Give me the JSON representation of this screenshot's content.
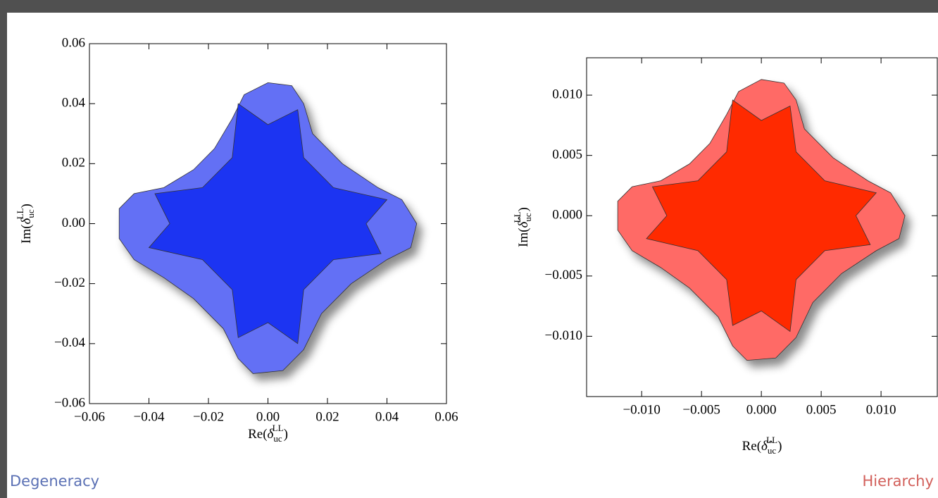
{
  "captions": [
    "Degeneracy",
    "Hierarchy"
  ],
  "chart_data": [
    {
      "type": "region",
      "xlabel": {
        "pre": "Re(",
        "sym": "δ",
        "sub": "uc",
        "sup": "LL",
        "post": ")"
      },
      "ylabel": {
        "pre": "Im(",
        "sym": "δ",
        "sub": "uc",
        "sup": "LL",
        "post": ")"
      },
      "xlim": [
        -0.06,
        0.06
      ],
      "ylim": [
        -0.06,
        0.06
      ],
      "xticks": [
        {
          "value": -0.06,
          "label": "−0.06"
        },
        {
          "value": -0.04,
          "label": "−0.04"
        },
        {
          "value": -0.02,
          "label": "−0.02"
        },
        {
          "value": 0,
          "label": "0.00"
        },
        0.02,
        0.04,
        0.06
      ],
      "yticks": [
        {
          "value": -0.06,
          "label": "−0.06"
        },
        {
          "value": -0.04,
          "label": "−0.04"
        },
        {
          "value": -0.02,
          "label": "−0.02"
        },
        {
          "value": 0,
          "label": "0.00"
        },
        0.02,
        0.04,
        0.06
      ],
      "series": [
        {
          "color": "#6470f5",
          "x": [
            0,
            0.008,
            0.012,
            0.015,
            0.025,
            0.037,
            0.045,
            0.05,
            0.048,
            0.04,
            0.028,
            0.018,
            0.012,
            0.005,
            -0.005,
            -0.01,
            -0.015,
            -0.025,
            -0.035,
            -0.045,
            -0.05,
            -0.05,
            -0.045,
            -0.035,
            -0.025,
            -0.018,
            -0.012,
            -0.008
          ],
          "y": [
            0.047,
            0.046,
            0.04,
            0.03,
            0.02,
            0.012,
            0.008,
            0,
            -0.008,
            -0.012,
            -0.02,
            -0.03,
            -0.042,
            -0.049,
            -0.05,
            -0.045,
            -0.035,
            -0.025,
            -0.018,
            -0.012,
            -0.005,
            0.005,
            0.01,
            0.012,
            0.018,
            0.025,
            0.035,
            0.043
          ]
        },
        {
          "color": "#1c34f2",
          "x": [
            -0.01,
            0,
            0.01,
            0.012,
            0.022,
            0.04,
            0.033,
            0.038,
            0.022,
            0.012,
            0.01,
            0,
            -0.01,
            -0.012,
            -0.022,
            -0.04,
            -0.033,
            -0.038,
            -0.022,
            -0.012
          ],
          "y": [
            0.04,
            0.033,
            0.038,
            0.022,
            0.012,
            0.008,
            0,
            -0.01,
            -0.012,
            -0.022,
            -0.04,
            -0.033,
            -0.038,
            -0.022,
            -0.012,
            -0.008,
            0,
            0.01,
            0.012,
            0.022
          ]
        }
      ]
    },
    {
      "type": "region",
      "xlabel": {
        "pre": "Re(",
        "sym": "δ̂",
        "sub": "uc",
        "sup": "LL",
        "post": ")"
      },
      "ylabel": {
        "pre": "Im(",
        "sym": "δ̂",
        "sub": "uc",
        "sup": "LL",
        "post": ")"
      },
      "xlim": [
        -0.0146,
        0.0147
      ],
      "ylim": [
        -0.015,
        0.0131
      ],
      "xticks": [
        {
          "value": -0.01,
          "label": "−0.010"
        },
        {
          "value": -0.005,
          "label": "−0.005"
        },
        {
          "value": 0,
          "label": "0.000"
        },
        0.005,
        {
          "value": 0.01,
          "label": "0.010"
        }
      ],
      "yticks": [
        {
          "value": -0.01,
          "label": "−0.010"
        },
        {
          "value": -0.005,
          "label": "−0.005"
        },
        {
          "value": 0,
          "label": "0.000"
        },
        0.005,
        {
          "value": 0.01,
          "label": "0.010"
        }
      ],
      "series": [
        {
          "color": "#ff6b66",
          "x": [
            0,
            0.0019,
            0.0029,
            0.0036,
            0.006,
            0.0089,
            0.0108,
            0.012,
            0.0115,
            0.0096,
            0.0067,
            0.0043,
            0.0029,
            0.0012,
            -0.0012,
            -0.0024,
            -0.0036,
            -0.006,
            -0.0084,
            -0.0108,
            -0.012,
            -0.012,
            -0.0108,
            -0.0084,
            -0.006,
            -0.0043,
            -0.0029,
            -0.0019
          ],
          "y": [
            0.0113,
            0.011,
            0.0096,
            0.0072,
            0.0048,
            0.0029,
            0.0019,
            0,
            -0.0019,
            -0.0029,
            -0.0048,
            -0.0072,
            -0.0101,
            -0.0118,
            -0.012,
            -0.0108,
            -0.0084,
            -0.006,
            -0.0043,
            -0.0029,
            -0.0012,
            0.0012,
            0.0024,
            0.0029,
            0.0043,
            0.006,
            0.0084,
            0.0103
          ]
        },
        {
          "color": "#ff2a00",
          "x": [
            -0.0024,
            0,
            0.0024,
            0.0029,
            0.0053,
            0.0096,
            0.0079,
            0.0091,
            0.0053,
            0.0029,
            0.0024,
            0,
            -0.0024,
            -0.0029,
            -0.0053,
            -0.0096,
            -0.0079,
            -0.0091,
            -0.0053,
            -0.0029
          ],
          "y": [
            0.0096,
            0.0079,
            0.0091,
            0.0053,
            0.0029,
            0.0019,
            0,
            -0.0024,
            -0.0029,
            -0.0053,
            -0.0096,
            -0.0079,
            -0.0091,
            -0.0053,
            -0.0029,
            -0.0019,
            0,
            0.0024,
            0.0029,
            0.0053
          ]
        }
      ]
    }
  ]
}
